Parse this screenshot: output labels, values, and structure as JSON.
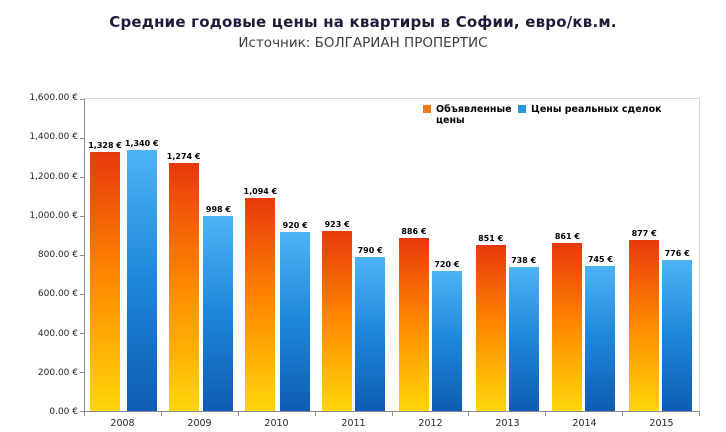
{
  "header": {
    "title": "Средние годовые цены на квартиры в Софии, евро/кв.м.",
    "subtitle": "Источник: БОЛГАРИАН ПРОПЕРТИС"
  },
  "chart_data": {
    "type": "bar",
    "title": "Средние годовые цены на квартиры в Софии, евро/кв.м.",
    "subtitle": "Источник: БОЛГАРИАН ПРОПЕРТИС",
    "categories": [
      "2008",
      "2009",
      "2010",
      "2011",
      "2012",
      "2013",
      "2014",
      "2015"
    ],
    "series": [
      {
        "name": "Объявленные цены",
        "values": [
          1328,
          1274,
          1094,
          923,
          886,
          851,
          861,
          877
        ],
        "labels": [
          "1,328 €",
          "1,274 €",
          "1,094 €",
          "923 €",
          "886 €",
          "851 €",
          "861 €",
          "877 €"
        ],
        "gradient": [
          "#e8380c",
          "#ff8a00",
          "#ffd60a"
        ],
        "legend_color": "#f07814"
      },
      {
        "name": "Цены реальных сделок",
        "values": [
          1340,
          998,
          920,
          790,
          720,
          738,
          745,
          776
        ],
        "labels": [
          "1,340 €",
          "998 €",
          "920 €",
          "790 €",
          "720 €",
          "738 €",
          "745 €",
          "776 €"
        ],
        "gradient": [
          "#4cb4f5",
          "#1e86d9",
          "#0e5cb4"
        ],
        "legend_color": "#2e96e0"
      }
    ],
    "ylim": [
      0,
      1600
    ],
    "ytick_step": 200,
    "ytick_labels": [
      "0.00 €",
      "200.00 €",
      "400.00 €",
      "600.00 €",
      "800.00 €",
      "1,000.00 €",
      "1,200.00 €",
      "1,400.00 €",
      "1,600.00 €"
    ],
    "legend_position": "top-right-inside",
    "grid": false
  }
}
